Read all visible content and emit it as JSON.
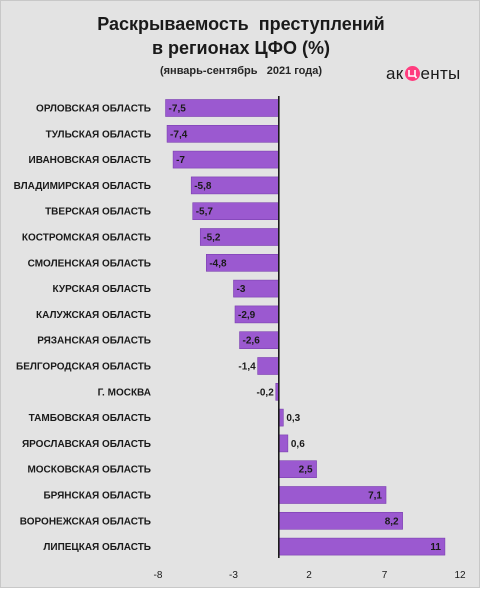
{
  "header": {
    "title_line1": "Раскрываемость  преступлений",
    "title_line2": "в регионах ЦФО (%)",
    "subtitle": "(январь-сентябрь   2021 года)",
    "logo_prefix": "ак",
    "logo_suffix": "енты"
  },
  "colors": {
    "bar": "#9b59d0",
    "bar_edge": "#7a3fb0",
    "axis": "#1a1a1a",
    "background": "#e3e3e3"
  },
  "chart_data": {
    "type": "bar",
    "orientation": "horizontal",
    "title": "Раскрываемость  преступлений в регионах ЦФО (%)",
    "subtitle": "(январь-сентябрь   2021 года)",
    "categories": [
      "ОРЛОВСКАЯ ОБЛАСТЬ",
      "ТУЛЬСКАЯ ОБЛАСТЬ",
      "ИВАНОВСКАЯ ОБЛАСТЬ",
      "ВЛАДИМИРСКАЯ ОБЛАСТЬ",
      "ТВЕРСКАЯ ОБЛАСТЬ",
      "КОСТРОМСКАЯ ОБЛАСТЬ",
      "СМОЛЕНСКАЯ ОБЛАСТЬ",
      "КУРСКАЯ ОБЛАСТЬ",
      "КАЛУЖСКАЯ ОБЛАСТЬ",
      "РЯЗАНСКАЯ ОБЛАСТЬ",
      "БЕЛГОРОДСКАЯ ОБЛАСТЬ",
      "Г. МОСКВА",
      "ТАМБОВСКАЯ ОБЛАСТЬ",
      "ЯРОСЛАВСКАЯ ОБЛАСТЬ",
      "МОСКОВСКАЯ ОБЛАСТЬ",
      "БРЯНСКАЯ ОБЛАСТЬ",
      "ВОРОНЕЖСКАЯ ОБЛАСТЬ",
      "ЛИПЕЦКАЯ ОБЛАСТЬ"
    ],
    "values": [
      -7.5,
      -7.4,
      -7,
      -5.8,
      -5.7,
      -5.2,
      -4.8,
      -3,
      -2.9,
      -2.6,
      -1.4,
      -0.2,
      0.3,
      0.6,
      2.5,
      7.1,
      8.2,
      11
    ],
    "value_labels": [
      "-7,5",
      "-7,4",
      "-7",
      "-5,8",
      "-5,7",
      "-5,2",
      "-4,8",
      "-3",
      "-2,9",
      "-2,6",
      "-1,4",
      "-0,2",
      "0,3",
      "0,6",
      "2,5",
      "7,1",
      "8,2",
      "11"
    ],
    "xlim": [
      -8,
      12
    ],
    "xticks": [
      -8,
      -3,
      2,
      7,
      12
    ],
    "xtick_labels": [
      "-8",
      "-3",
      "2",
      "7",
      "12"
    ],
    "grid": false,
    "legend": "none"
  }
}
